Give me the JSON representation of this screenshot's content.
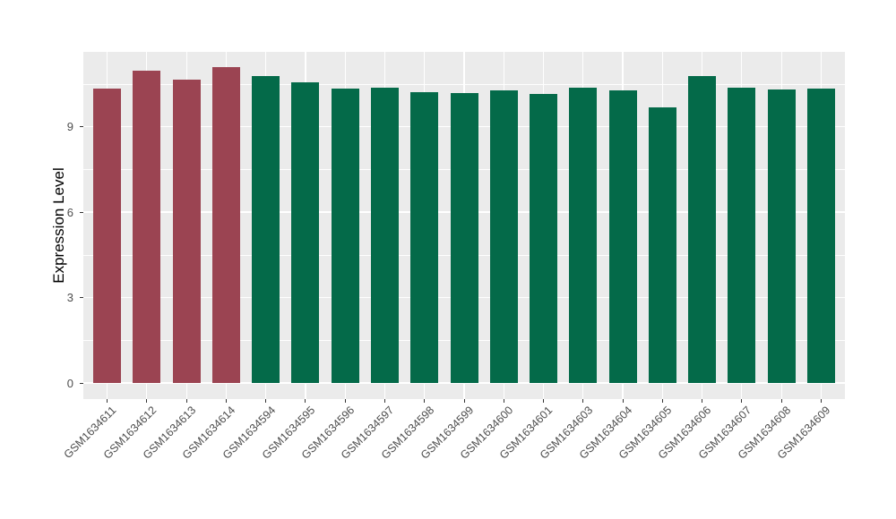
{
  "figure": {
    "background_color": "#FFFFFF",
    "panel_background_color": "#EBEBEB",
    "gridline_color": "#FFFFFF",
    "tick_mark_color": "#333333",
    "tick_label_color": "#4D4D4D",
    "axis_title_color": "#000000"
  },
  "chart_data": {
    "type": "bar",
    "title": "",
    "xlabel": "",
    "ylabel": "Expression Level",
    "legend": "none",
    "grid": true,
    "x_label_rotation_deg": 45,
    "ylim": [
      -0.56,
      11.63
    ],
    "yticks": [
      0,
      3,
      6,
      9
    ],
    "minor_yticks": [
      1.5,
      4.5,
      7.5,
      10.5
    ],
    "categories": [
      "GSM1634611",
      "GSM1634612",
      "GSM1634613",
      "GSM1634614",
      "GSM1634594",
      "GSM1634595",
      "GSM1634596",
      "GSM1634597",
      "GSM1634598",
      "GSM1634599",
      "GSM1634600",
      "GSM1634601",
      "GSM1634603",
      "GSM1634604",
      "GSM1634605",
      "GSM1634606",
      "GSM1634607",
      "GSM1634608",
      "GSM1634609"
    ],
    "values": [
      10.34,
      10.98,
      10.67,
      11.09,
      10.78,
      10.57,
      10.35,
      10.37,
      10.23,
      10.2,
      10.28,
      10.15,
      10.36,
      10.28,
      9.69,
      10.77,
      10.36,
      10.3,
      10.33
    ],
    "bar_colors": [
      "#9B4452",
      "#9B4452",
      "#9B4452",
      "#9B4452",
      "#046A49",
      "#046A49",
      "#046A49",
      "#046A49",
      "#046A49",
      "#046A49",
      "#046A49",
      "#046A49",
      "#046A49",
      "#046A49",
      "#046A49",
      "#046A49",
      "#046A49",
      "#046A49",
      "#046A49"
    ],
    "group_colors": {
      "group1_red": "#9B4452",
      "group2_green": "#046A49"
    }
  }
}
